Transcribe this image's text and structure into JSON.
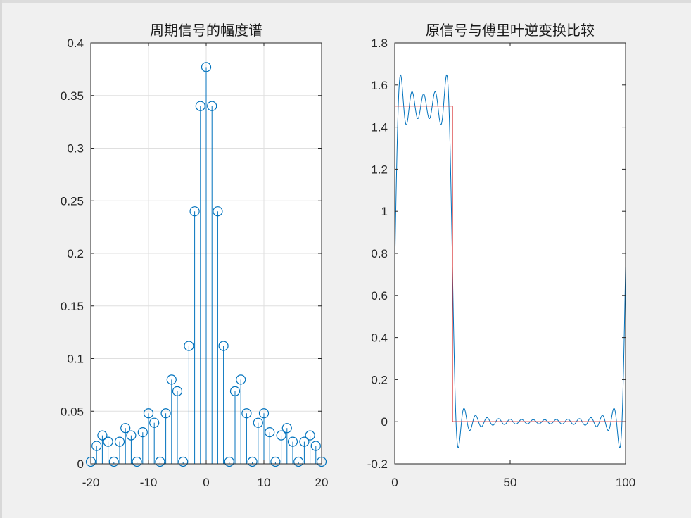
{
  "chart_data": [
    {
      "type": "stem",
      "title": "周期信号的幅度谱",
      "xlim": [
        -20,
        20
      ],
      "ylim": [
        0,
        0.4
      ],
      "xticks": [
        -20,
        -10,
        0,
        10,
        20
      ],
      "yticks": [
        0,
        0.05,
        0.1,
        0.15,
        0.2,
        0.25,
        0.3,
        0.35,
        0.4
      ],
      "xticklabels": [
        "-20",
        "-10",
        "0",
        "10",
        "20"
      ],
      "yticklabels": [
        "0",
        "0.05",
        "0.1",
        "0.15",
        "0.2",
        "0.25",
        "0.3",
        "0.35",
        "0.4"
      ],
      "grid": true,
      "color": "#0072bd",
      "x": [
        -20,
        -19,
        -18,
        -17,
        -16,
        -15,
        -14,
        -13,
        -12,
        -11,
        -10,
        -9,
        -8,
        -7,
        -6,
        -5,
        -4,
        -3,
        -2,
        -1,
        0,
        1,
        2,
        3,
        4,
        5,
        6,
        7,
        8,
        9,
        10,
        11,
        12,
        13,
        14,
        15,
        16,
        17,
        18,
        19,
        20
      ],
      "y": [
        0.002,
        0.017,
        0.027,
        0.021,
        0.002,
        0.021,
        0.034,
        0.027,
        0.002,
        0.03,
        0.048,
        0.039,
        0.002,
        0.048,
        0.08,
        0.069,
        0.002,
        0.112,
        0.24,
        0.34,
        0.377,
        0.34,
        0.24,
        0.112,
        0.002,
        0.069,
        0.08,
        0.048,
        0.002,
        0.039,
        0.048,
        0.03,
        0.002,
        0.027,
        0.034,
        0.021,
        0.002,
        0.021,
        0.027,
        0.017,
        0.002
      ]
    },
    {
      "type": "line",
      "title": "原信号与傅里叶逆变换比较",
      "xlim": [
        0,
        100
      ],
      "ylim": [
        -0.2,
        1.8
      ],
      "xticks": [
        0,
        50,
        100
      ],
      "yticks": [
        -0.2,
        0,
        0.2,
        0.4,
        0.6,
        0.8,
        1,
        1.2,
        1.4,
        1.6,
        1.8
      ],
      "xticklabels": [
        "0",
        "50",
        "100"
      ],
      "yticklabels": [
        "-0.2",
        "0",
        "0.2",
        "0.4",
        "0.6",
        "0.8",
        "1",
        "1.2",
        "1.4",
        "1.6",
        "1.8"
      ],
      "grid": false,
      "series": [
        {
          "color": "#d62728",
          "x": [
            0,
            25,
            25,
            100
          ],
          "y": [
            1.5,
            1.5,
            0,
            0
          ]
        },
        {
          "color": "#0072bd",
          "harmonics": 20,
          "period": 100,
          "pulse_width": 25,
          "amplitude": 1.5
        }
      ]
    }
  ]
}
